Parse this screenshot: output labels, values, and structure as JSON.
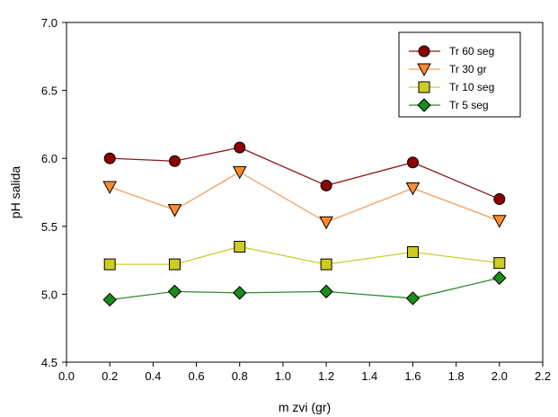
{
  "chart_data": {
    "type": "line",
    "xlabel": "m zvi (gr)",
    "ylabel": "pH salida",
    "xlim": [
      0.0,
      2.2
    ],
    "ylim": [
      4.5,
      7.0
    ],
    "xticks": [
      0.0,
      0.2,
      0.4,
      0.6,
      0.8,
      1.0,
      1.2,
      1.4,
      1.6,
      1.8,
      2.0,
      2.2
    ],
    "xtick_labels": [
      "0.0",
      "0.2",
      "0.4",
      "0.6",
      "0.8",
      "1.0",
      "1.2",
      "1.4",
      "1.6",
      "1.8",
      "2.0",
      "2.2"
    ],
    "yticks": [
      4.5,
      5.0,
      5.5,
      6.0,
      6.5,
      7.0
    ],
    "ytick_labels": [
      "4.5",
      "5.0",
      "5.5",
      "6.0",
      "6.5",
      "7.0"
    ],
    "grid": false,
    "legend_position": "top-right",
    "x": [
      0.2,
      0.5,
      0.8,
      1.2,
      1.6,
      2.0
    ],
    "series": [
      {
        "name": "Tr 60 seg",
        "marker": "circle",
        "line_color": "#8B1A1A",
        "marker_color": "#8B0000",
        "values": [
          6.0,
          5.98,
          6.08,
          5.8,
          5.97,
          5.7
        ]
      },
      {
        "name": "Tr 30 gr",
        "marker": "triangle-down",
        "line_color": "#F4A060",
        "marker_color": "#FF8C2E",
        "values": [
          5.79,
          5.62,
          5.9,
          5.53,
          5.78,
          5.54
        ]
      },
      {
        "name": "Tr 10 seg",
        "marker": "square",
        "line_color": "#CCCC33",
        "marker_color": "#CCCC22",
        "values": [
          5.22,
          5.22,
          5.35,
          5.22,
          5.31,
          5.23
        ]
      },
      {
        "name": "Tr 5 seg",
        "marker": "diamond",
        "line_color": "#2E8B2E",
        "marker_color": "#1A8C1A",
        "values": [
          4.96,
          5.02,
          5.01,
          5.02,
          4.97,
          5.12
        ]
      }
    ]
  }
}
